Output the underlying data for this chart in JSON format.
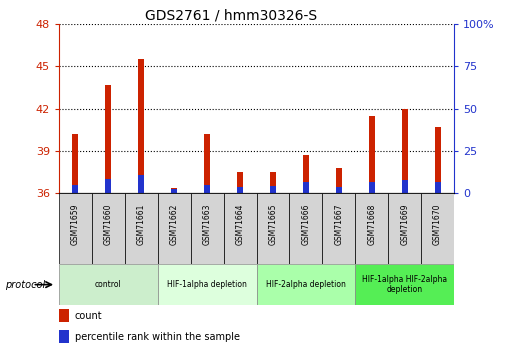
{
  "title": "GDS2761 / hmm30326-S",
  "samples": [
    "GSM71659",
    "GSM71660",
    "GSM71661",
    "GSM71662",
    "GSM71663",
    "GSM71664",
    "GSM71665",
    "GSM71666",
    "GSM71667",
    "GSM71668",
    "GSM71669",
    "GSM71670"
  ],
  "count_values": [
    40.2,
    43.7,
    45.5,
    36.35,
    40.2,
    37.5,
    37.5,
    38.7,
    37.8,
    41.5,
    42.0,
    40.7
  ],
  "percentile_values": [
    5.0,
    8.3,
    11.0,
    2.5,
    5.0,
    3.5,
    4.2,
    6.5,
    3.5,
    6.5,
    8.0,
    6.5
  ],
  "ylim_left": [
    36,
    48
  ],
  "ylim_right": [
    0,
    100
  ],
  "yticks_left": [
    36,
    39,
    42,
    45,
    48
  ],
  "yticks_right": [
    0,
    25,
    50,
    75,
    100
  ],
  "bar_width": 0.18,
  "red_color": "#cc2200",
  "blue_color": "#2233cc",
  "tick_bg_color": "#d8d8d8",
  "protocol_groups": [
    {
      "label": "control",
      "start": 0,
      "end": 2,
      "color": "#cceecc"
    },
    {
      "label": "HIF-1alpha depletion",
      "start": 3,
      "end": 5,
      "color": "#ddffdd"
    },
    {
      "label": "HIF-2alpha depletion",
      "start": 6,
      "end": 8,
      "color": "#aaffaa"
    },
    {
      "label": "HIF-1alpha HIF-2alpha\ndepletion",
      "start": 9,
      "end": 11,
      "color": "#55ee55"
    }
  ]
}
